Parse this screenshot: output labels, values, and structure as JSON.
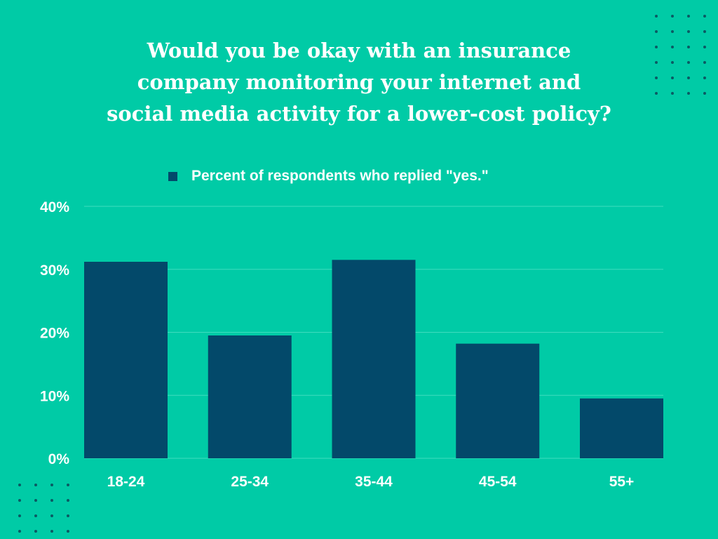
{
  "chart_data": {
    "type": "bar",
    "title_lines": [
      "Would you be okay with an insurance",
      "company monitoring your internet and",
      "social media activity for a lower-cost policy?"
    ],
    "legend": [
      "Percent of respondents who replied \"yes.\""
    ],
    "categories": [
      "18-24",
      "25-34",
      "35-44",
      "45-54",
      "55+"
    ],
    "series": [
      {
        "name": "Percent of respondents who replied \"yes.\"",
        "values": [
          31.2,
          19.5,
          31.5,
          18.2,
          9.5
        ]
      }
    ],
    "ylim": [
      0,
      40
    ],
    "yticks": [
      0,
      10,
      20,
      30,
      40
    ],
    "ytick_labels": [
      "0%",
      "10%",
      "20%",
      "30%",
      "40%"
    ],
    "grid": true,
    "xlabel": "",
    "ylabel": ""
  },
  "colors": {
    "background": "#00cba6",
    "bar": "#03496a",
    "gridline": "#3fdcbe",
    "text": "#ffffff",
    "dots": "#0b5a63"
  }
}
